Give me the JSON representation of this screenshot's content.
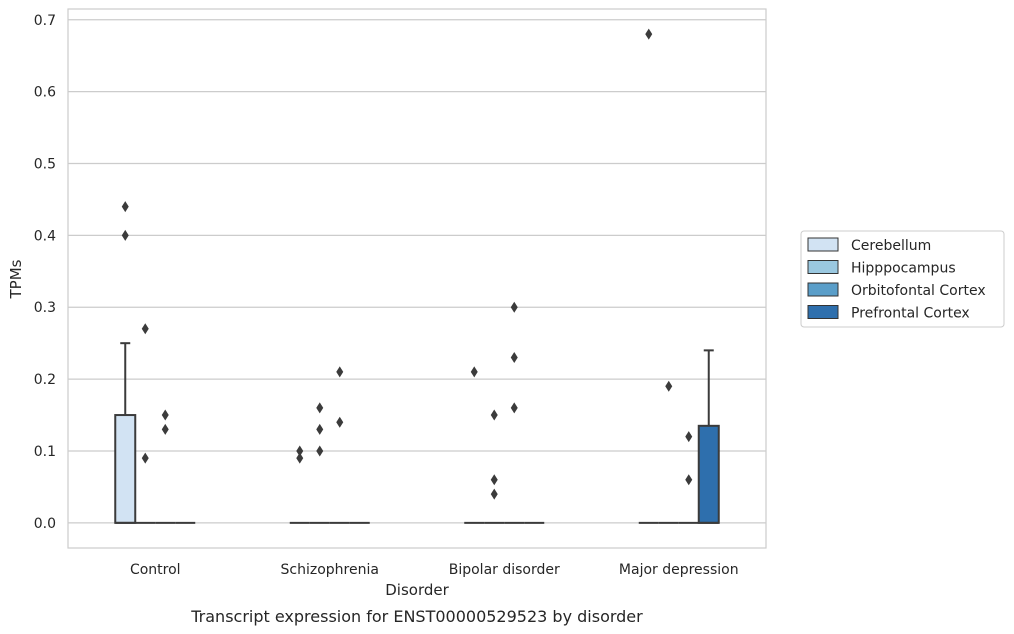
{
  "chart_data": {
    "type": "box",
    "caption": "Transcript expression for ENST00000529523 by disorder",
    "xlabel": "Disorder",
    "ylabel": "TPMs",
    "ylim": [
      -0.035,
      0.715
    ],
    "yticks": [
      "0.0",
      "0.1",
      "0.2",
      "0.3",
      "0.4",
      "0.5",
      "0.6",
      "0.7"
    ],
    "grid": "horizontal",
    "legend_position": "right",
    "categories": [
      "Control",
      "Schizophrenia",
      "Bipolar disorder",
      "Major depression"
    ],
    "series": [
      {
        "name": "Cerebellum",
        "color": "#d2e3f3",
        "boxes": [
          {
            "q1": 0,
            "median": 0,
            "q3": 0.15,
            "whisker_low": 0,
            "whisker_high": 0.25,
            "outliers": [
              0.4,
              0.44
            ]
          },
          {
            "q1": 0,
            "median": 0,
            "q3": 0,
            "whisker_low": 0,
            "whisker_high": 0,
            "outliers": [
              0.09,
              0.1
            ]
          },
          {
            "q1": 0,
            "median": 0,
            "q3": 0,
            "whisker_low": 0,
            "whisker_high": 0,
            "outliers": [
              0.21
            ]
          },
          {
            "q1": 0,
            "median": 0,
            "q3": 0,
            "whisker_low": 0,
            "whisker_high": 0,
            "outliers": [
              0.68
            ]
          }
        ]
      },
      {
        "name": "Hipppocampus",
        "color": "#9ac8e0",
        "boxes": [
          {
            "q1": 0,
            "median": 0,
            "q3": 0,
            "whisker_low": 0,
            "whisker_high": 0,
            "outliers": [
              0.09,
              0.27
            ]
          },
          {
            "q1": 0,
            "median": 0,
            "q3": 0,
            "whisker_low": 0,
            "whisker_high": 0,
            "outliers": [
              0.1,
              0.13,
              0.16
            ]
          },
          {
            "q1": 0,
            "median": 0,
            "q3": 0,
            "whisker_low": 0,
            "whisker_high": 0,
            "outliers": [
              0.04,
              0.06,
              0.15
            ]
          },
          {
            "q1": 0,
            "median": 0,
            "q3": 0,
            "whisker_low": 0,
            "whisker_high": 0,
            "outliers": [
              0.19
            ]
          }
        ]
      },
      {
        "name": "Orbitofontal Cortex",
        "color": "#5a9ec9",
        "boxes": [
          {
            "q1": 0,
            "median": 0,
            "q3": 0,
            "whisker_low": 0,
            "whisker_high": 0,
            "outliers": [
              0.13,
              0.15
            ]
          },
          {
            "q1": 0,
            "median": 0,
            "q3": 0,
            "whisker_low": 0,
            "whisker_high": 0,
            "outliers": [
              0.14,
              0.21
            ]
          },
          {
            "q1": 0,
            "median": 0,
            "q3": 0,
            "whisker_low": 0,
            "whisker_high": 0,
            "outliers": [
              0.16,
              0.23,
              0.3
            ]
          },
          {
            "q1": 0,
            "median": 0,
            "q3": 0,
            "whisker_low": 0,
            "whisker_high": 0,
            "outliers": [
              0.06,
              0.12
            ]
          }
        ]
      },
      {
        "name": "Prefrontal Cortex",
        "color": "#2e6fad",
        "boxes": [
          {
            "q1": 0,
            "median": 0,
            "q3": 0,
            "whisker_low": 0,
            "whisker_high": 0,
            "outliers": []
          },
          {
            "q1": 0,
            "median": 0,
            "q3": 0,
            "whisker_low": 0,
            "whisker_high": 0,
            "outliers": []
          },
          {
            "q1": 0,
            "median": 0,
            "q3": 0,
            "whisker_low": 0,
            "whisker_high": 0,
            "outliers": []
          },
          {
            "q1": 0,
            "median": 0,
            "q3": 0.135,
            "whisker_low": 0,
            "whisker_high": 0.24,
            "outliers": []
          }
        ]
      }
    ]
  }
}
